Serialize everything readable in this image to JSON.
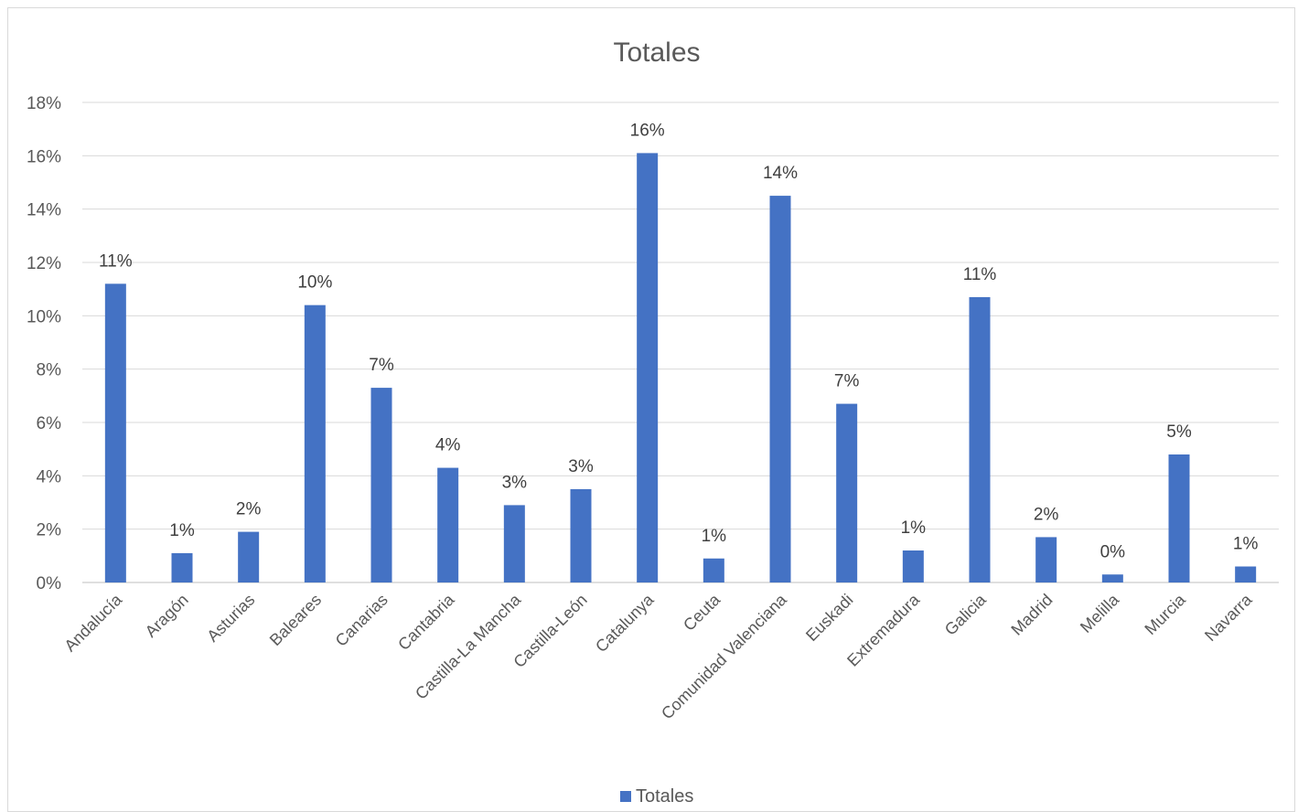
{
  "chart_data": {
    "type": "bar",
    "title": "Totales",
    "xlabel": "",
    "ylabel": "",
    "categories": [
      "Andalucía",
      "Aragón",
      "Asturias",
      "Baleares",
      "Canarias",
      "Cantabria",
      "Castilla-La Mancha",
      "Castilla-León",
      "Catalunya",
      "Ceuta",
      "Comunidad Valenciana",
      "Euskadi",
      "Extremadura",
      "Galicia",
      "Madrid",
      "Melilla",
      "Murcia",
      "Navarra"
    ],
    "series": [
      {
        "name": "Totales",
        "color": "#4472c4",
        "values": [
          11.2,
          1.1,
          1.9,
          10.4,
          7.3,
          4.3,
          2.9,
          3.5,
          16.1,
          0.9,
          14.5,
          6.7,
          1.2,
          10.7,
          1.7,
          0.3,
          4.8,
          0.6
        ],
        "labels": [
          "11%",
          "1%",
          "2%",
          "10%",
          "7%",
          "4%",
          "3%",
          "3%",
          "16%",
          "1%",
          "14%",
          "7%",
          "1%",
          "11%",
          "2%",
          "0%",
          "5%",
          "1%"
        ]
      }
    ],
    "ylim": [
      0,
      18
    ],
    "yticks": [
      0,
      2,
      4,
      6,
      8,
      10,
      12,
      14,
      16,
      18
    ],
    "ytick_labels": [
      "0%",
      "2%",
      "4%",
      "6%",
      "8%",
      "10%",
      "12%",
      "14%",
      "16%",
      "18%"
    ],
    "grid": true,
    "legend_position": "bottom"
  }
}
